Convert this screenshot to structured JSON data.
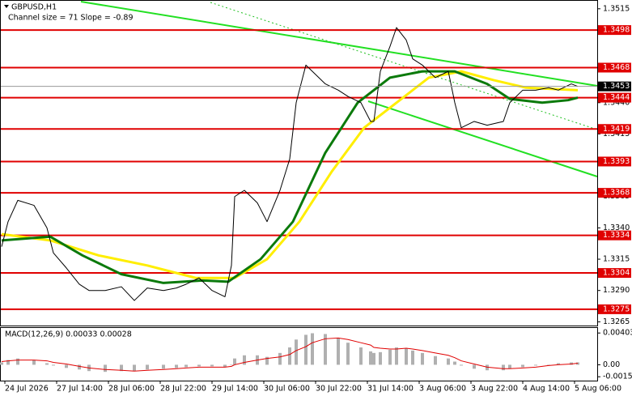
{
  "chart_data": [
    {
      "type": "line",
      "title": "GBPUSD,H1",
      "subtitle": "Channel size = 71 Slope = -0.89",
      "xlim": [
        -0.5,
        184
      ],
      "xticks": [
        {
          "value": 1,
          "label": "24 Jul 2026"
        },
        {
          "value": 17,
          "label": "27 Jul 14:00"
        },
        {
          "value": 33,
          "label": "28 Jul 06:00"
        },
        {
          "value": 49,
          "label": "28 Jul 22:00"
        },
        {
          "value": 65,
          "label": "29 Jul 14:00"
        },
        {
          "value": 81,
          "label": "30 Jul 06:00"
        },
        {
          "value": 97,
          "label": "30 Jul 22:00"
        },
        {
          "value": 113,
          "label": "31 Jul 14:00"
        },
        {
          "value": 129,
          "label": "3 Aug 06:00"
        },
        {
          "value": 145,
          "label": "3 Aug 22:00"
        },
        {
          "value": 161,
          "label": "4 Aug 14:00"
        },
        {
          "value": 177,
          "label": "5 Aug 06:00"
        }
      ],
      "ylim": [
        1.3262,
        1.3522
      ],
      "yticks": [
        1.3515,
        {
          "value": 1.344,
          "label": "1.3440"
        },
        1.3415,
        1.3365,
        {
          "value": 1.334,
          "label": "1.3340"
        },
        1.3315,
        {
          "value": 1.329,
          "label": "1.3290"
        },
        1.3265
      ],
      "levels": [
        1.3498,
        1.3468,
        1.3444,
        1.3419,
        1.3393,
        1.3368,
        1.3334,
        1.3304,
        1.3275
      ],
      "level_color": "#e00000",
      "last": 1.3453,
      "series": [
        {
          "color": "#000000",
          "x": [
            0,
            2,
            5,
            10,
            14,
            16,
            20,
            24,
            27,
            32,
            37,
            41,
            45,
            50,
            54,
            57,
            61,
            65,
            69,
            71,
            72,
            75,
            79,
            82,
            86,
            89,
            91,
            94,
            96,
            100,
            104,
            107,
            111,
            114,
            115,
            117,
            120,
            122,
            125,
            127,
            130,
            134,
            138,
            140,
            142,
            146,
            150,
            155,
            157,
            161,
            165,
            169,
            172,
            176,
            178
          ],
          "values": [
            1.3325,
            1.3345,
            1.3362,
            1.3358,
            1.334,
            1.332,
            1.3308,
            1.3295,
            1.329,
            1.329,
            1.3293,
            1.3282,
            1.3292,
            1.329,
            1.3292,
            1.3295,
            1.33,
            1.329,
            1.3285,
            1.331,
            1.3365,
            1.337,
            1.336,
            1.3345,
            1.337,
            1.3395,
            1.344,
            1.347,
            1.3465,
            1.3455,
            1.345,
            1.3445,
            1.344,
            1.3425,
            1.3425,
            1.3465,
            1.3485,
            1.35,
            1.349,
            1.3475,
            1.347,
            1.346,
            1.3465,
            1.344,
            1.342,
            1.3425,
            1.3422,
            1.3425,
            1.344,
            1.345,
            1.345,
            1.3452,
            1.345,
            1.3455,
            1.3453
          ]
        },
        {
          "color": "#ffee00",
          "x": [
            0,
            15,
            30,
            45,
            60,
            72,
            82,
            92,
            102,
            112,
            122,
            132,
            142,
            152,
            162,
            178
          ],
          "values": [
            1.3335,
            1.333,
            1.3318,
            1.331,
            1.33,
            1.33,
            1.3315,
            1.3345,
            1.3385,
            1.342,
            1.344,
            1.346,
            1.3465,
            1.3458,
            1.3452,
            1.345
          ]
        },
        {
          "color": "#0b7a0b",
          "x": [
            0,
            15,
            25,
            37,
            50,
            62,
            70,
            80,
            90,
            100,
            110,
            120,
            130,
            140,
            150,
            157,
            167,
            175,
            178
          ],
          "values": [
            1.333,
            1.3333,
            1.3318,
            1.3303,
            1.3296,
            1.3298,
            1.3297,
            1.3315,
            1.3345,
            1.34,
            1.344,
            1.346,
            1.3465,
            1.3465,
            1.3455,
            1.3443,
            1.344,
            1.3442,
            1.3444
          ]
        }
      ]
    },
    {
      "type": "bar",
      "title": "MACD(12,26,9) 0.00033 0.00028",
      "ylim": [
        -0.00201,
        0.00477
      ],
      "yticks": [
        0.00403,
        {
          "value": 0,
          "label": "0.00"
        },
        -0.00152
      ],
      "x": [
        0,
        2,
        5,
        10,
        14,
        16,
        20,
        24,
        27,
        32,
        37,
        41,
        45,
        50,
        54,
        57,
        61,
        65,
        69,
        71,
        72,
        75,
        79,
        82,
        86,
        89,
        91,
        94,
        96,
        100,
        104,
        107,
        111,
        114,
        115,
        117,
        120,
        122,
        125,
        127,
        130,
        134,
        138,
        140,
        142,
        146,
        150,
        155,
        157,
        161,
        165,
        169,
        172,
        176,
        178
      ],
      "series": [
        {
          "color": "#b0b0b0",
          "style": "bar",
          "values": [
            0.0003,
            0.0006,
            0.0008,
            0.0006,
            0.0002,
            -0.0001,
            -0.0004,
            -0.0006,
            -0.0008,
            -0.0009,
            -0.0008,
            -0.0008,
            -0.0006,
            -0.0005,
            -0.0004,
            -0.0003,
            -0.0002,
            -0.0002,
            -0.0003,
            0,
            0.0008,
            0.0012,
            0.0012,
            0.001,
            0.0015,
            0.0022,
            0.0032,
            0.0038,
            0.004,
            0.0039,
            0.0034,
            0.0028,
            0.0022,
            0.0017,
            0.0015,
            0.0016,
            0.0019,
            0.0022,
            0.0021,
            0.0018,
            0.0015,
            0.0011,
            0.0008,
            0.0004,
            -0.0001,
            -0.0005,
            -0.0007,
            -0.0007,
            -0.0005,
            -0.0003,
            -0.0001,
            0,
            0.0002,
            0.0003,
            0.0003
          ]
        },
        {
          "color": "#e00000",
          "style": "line",
          "values": [
            0.0004,
            0.0005,
            0.0006,
            0.0006,
            0.0005,
            0.0003,
            0.0001,
            -0.0002,
            -0.0004,
            -0.0006,
            -0.0007,
            -0.0008,
            -0.0007,
            -0.0006,
            -0.0005,
            -0.0004,
            -0.0003,
            -0.0003,
            -0.0003,
            -0.0002,
            0,
            0.0003,
            0.0006,
            0.0008,
            0.001,
            0.0013,
            0.0018,
            0.0023,
            0.0028,
            0.0033,
            0.0034,
            0.0032,
            0.0028,
            0.0025,
            0.0022,
            0.0021,
            0.002,
            0.002,
            0.0021,
            0.002,
            0.0018,
            0.0015,
            0.0012,
            0.0009,
            0.0005,
            0.0001,
            -0.0003,
            -0.0005,
            -0.0005,
            -0.0004,
            -0.0003,
            -0.0001,
            0,
            0.0001,
            0.0002
          ]
        }
      ]
    }
  ]
}
